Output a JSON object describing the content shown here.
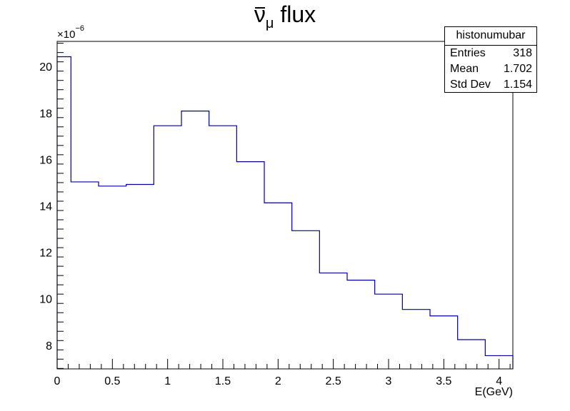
{
  "title": {
    "symbol": "ν",
    "subscript": "μ",
    "suffix": " flux"
  },
  "y_multiplier": {
    "base": "×10",
    "exponent": "−6"
  },
  "stats": {
    "name": "histonumubar",
    "rows": [
      {
        "label": "Entries",
        "value": "318"
      },
      {
        "label": "Mean",
        "value": "1.702"
      },
      {
        "label": "Std Dev",
        "value": "1.154"
      }
    ]
  },
  "line_color": "#000099",
  "chart_data": {
    "type": "bar",
    "style": "step-histogram",
    "xlabel": "E(GeV)",
    "ylabel": "",
    "xlim": [
      0,
      4.125
    ],
    "ylim": [
      6.98,
      21.08
    ],
    "x_ticks": [
      0,
      0.5,
      1,
      1.5,
      2,
      2.5,
      3,
      3.5,
      4
    ],
    "x_tick_labels": [
      "0",
      "0.5",
      "1",
      "1.5",
      "2",
      "2.5",
      "3",
      "3.5",
      "4"
    ],
    "y_ticks": [
      8,
      10,
      12,
      14,
      16,
      18,
      20
    ],
    "y_tick_labels": [
      "8",
      "10",
      "12",
      "14",
      "16",
      "18",
      "20"
    ],
    "bin_edges": [
      0,
      0.125,
      0.375,
      0.625,
      0.875,
      1.125,
      1.375,
      1.625,
      1.875,
      2.125,
      2.375,
      2.625,
      2.875,
      3.125,
      3.375,
      3.625,
      3.875,
      4.125
    ],
    "values": [
      20.42,
      15.03,
      14.85,
      14.92,
      17.45,
      18.08,
      17.45,
      15.9,
      14.13,
      12.93,
      11.11,
      10.8,
      10.2,
      9.54,
      9.26,
      8.24,
      7.55
    ]
  }
}
